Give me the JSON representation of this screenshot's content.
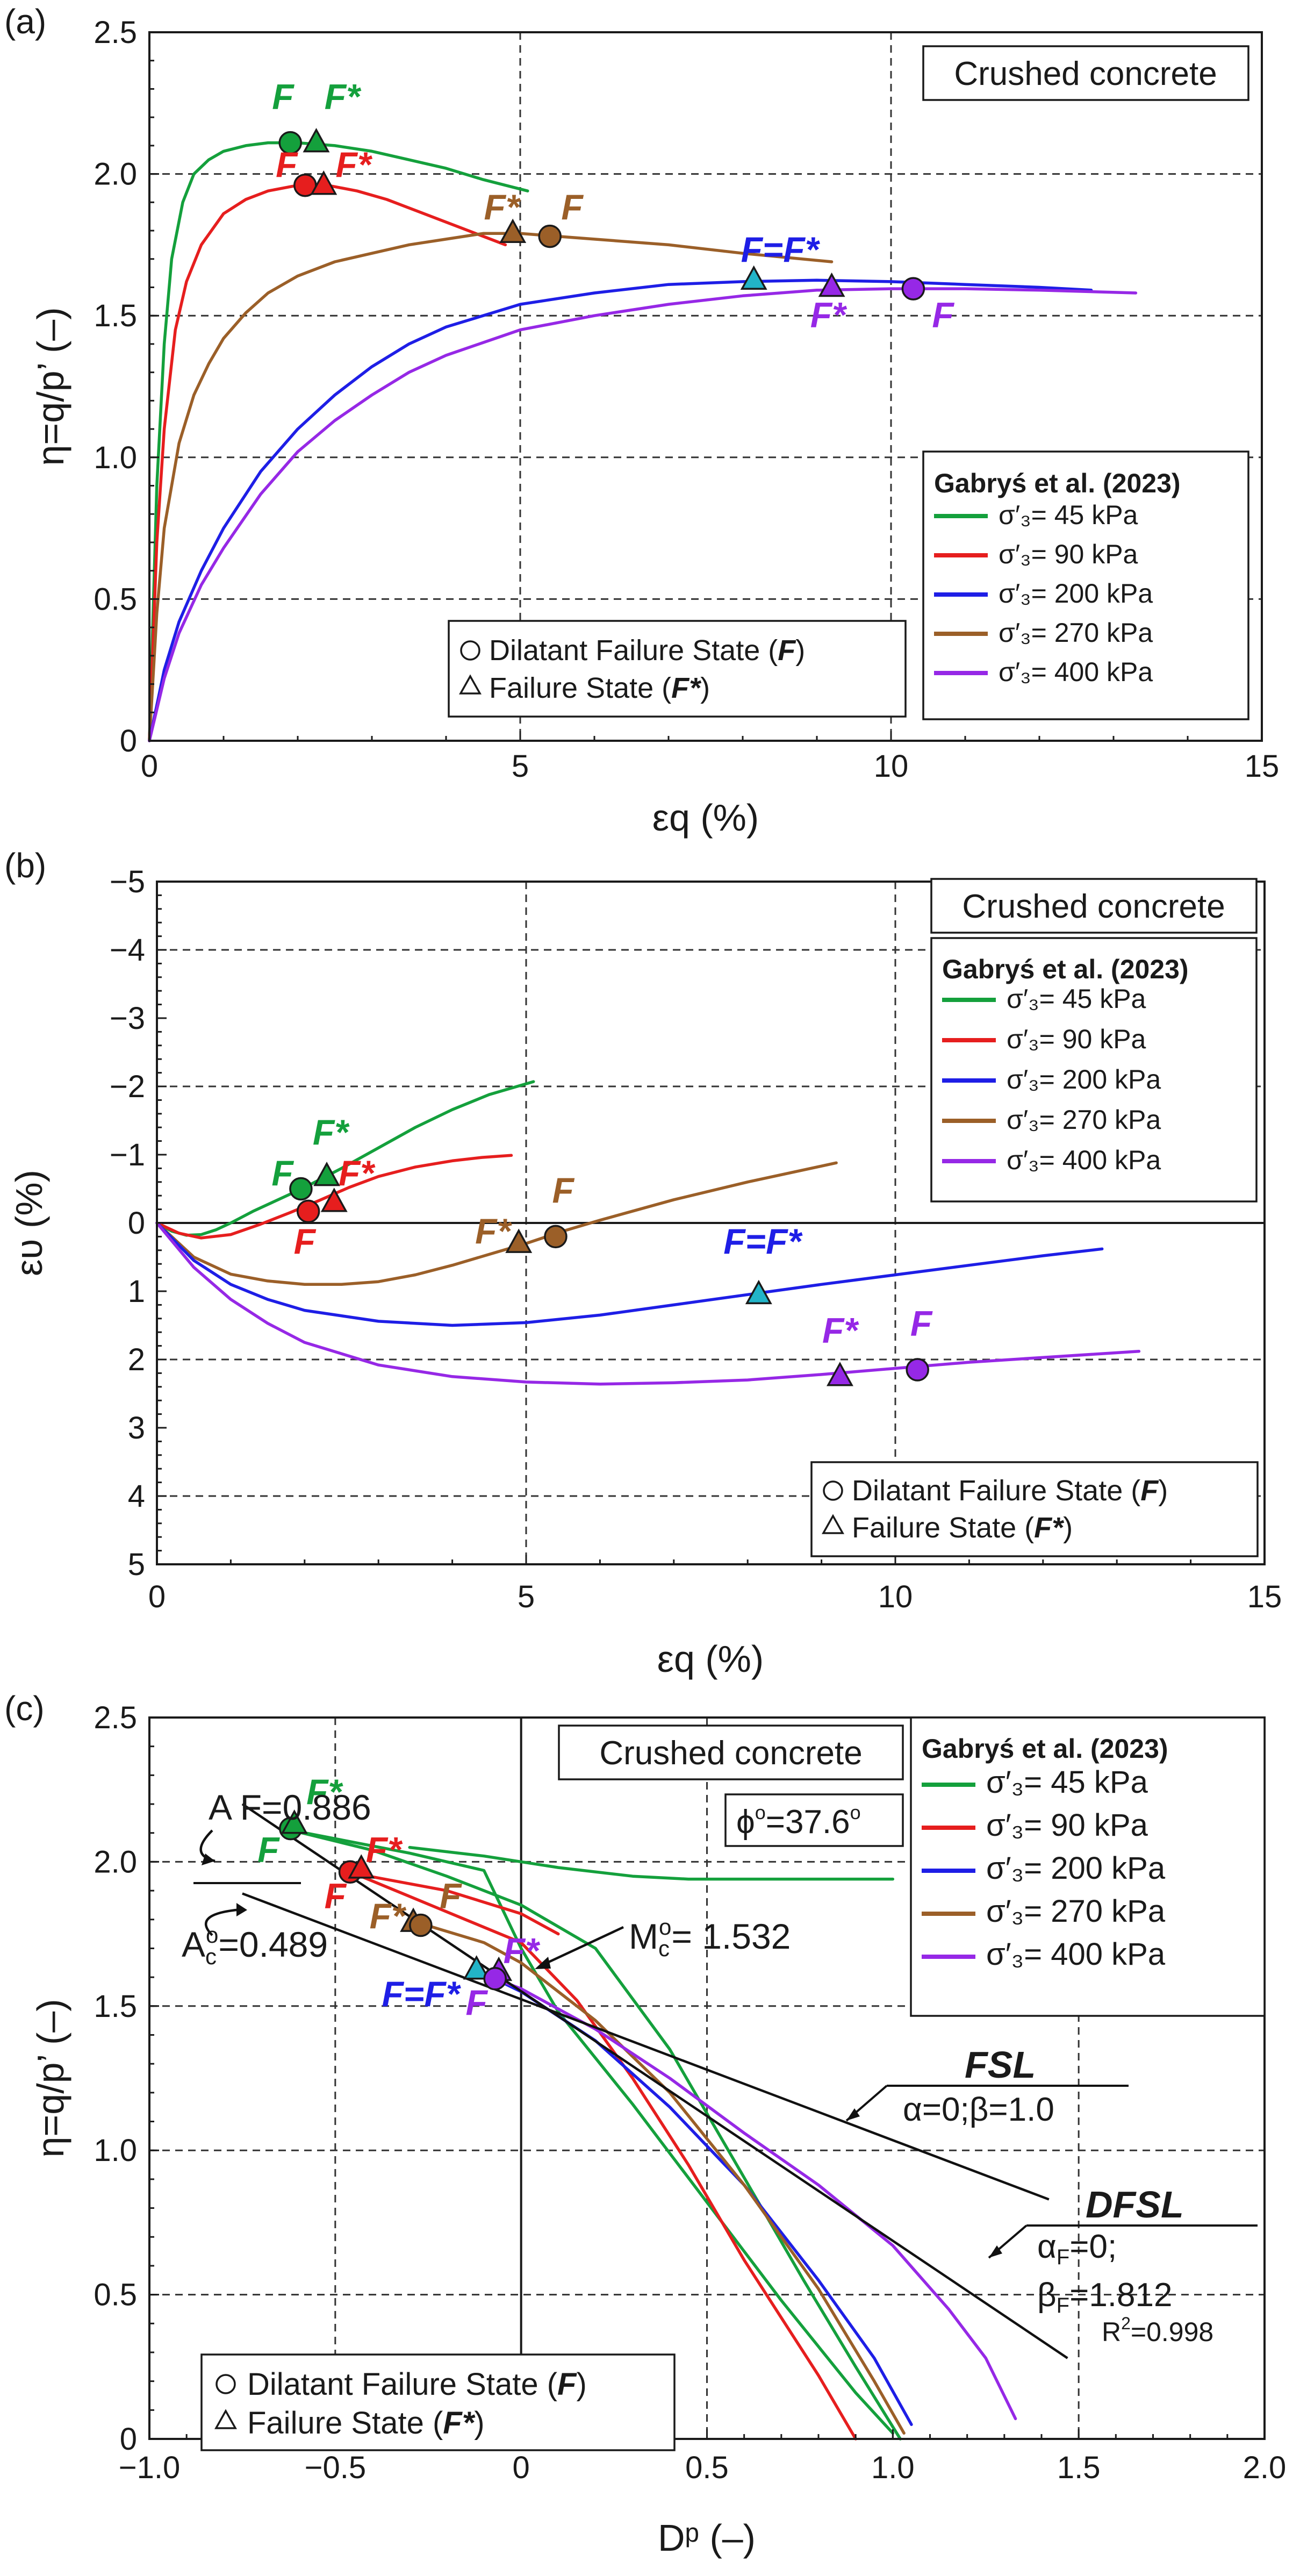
{
  "colors": {
    "s45": "#14a03c",
    "s90": "#e61e1e",
    "s200": "#1e1ee6",
    "s270": "#9b5f28",
    "s400": "#9628e6",
    "cyan": "#22b4c8"
  },
  "legend_entries": [
    {
      "key": "s45",
      "label": "= 45 kPa"
    },
    {
      "key": "s90",
      "label": "= 90 kPa"
    },
    {
      "key": "s200",
      "label": "= 200 kPa"
    },
    {
      "key": "s270",
      "label": "= 270 kPa"
    },
    {
      "key": "s400",
      "label": "= 400 kPa"
    }
  ],
  "labels": {
    "sigma": "σ′₃",
    "source": "Gabryś et al. (2023)",
    "material": "Crushed concrete",
    "dilatant": "Dilatant Failure State (",
    "failure": "Failure State (",
    "F": "F",
    "Fstar": "F*",
    "close": ")",
    "FeqF": "F=F*"
  },
  "chart_data": [
    {
      "panel_label": "(a)",
      "type": "line",
      "xlabel": "εq (%)",
      "ylabel": "η=q/p’ (–)",
      "xlim": [
        0,
        15
      ],
      "ylim": [
        0,
        2.5
      ],
      "xticks": [
        "0",
        "5",
        "10",
        "15"
      ],
      "yticks": [
        "0",
        "0.5",
        "1.0",
        "1.5",
        "2.0",
        "2.5"
      ],
      "series": [
        {
          "key": "s45",
          "x": [
            0,
            0.1,
            0.2,
            0.3,
            0.45,
            0.6,
            0.8,
            1.0,
            1.3,
            1.6,
            2.0,
            2.5,
            3.0,
            3.5,
            4.0,
            4.5,
            5.1
          ],
          "y": [
            0,
            0.9,
            1.4,
            1.7,
            1.9,
            2.0,
            2.05,
            2.08,
            2.1,
            2.11,
            2.11,
            2.1,
            2.08,
            2.05,
            2.02,
            1.98,
            1.94
          ]
        },
        {
          "key": "s90",
          "x": [
            0,
            0.1,
            0.2,
            0.35,
            0.5,
            0.7,
            1.0,
            1.3,
            1.6,
            2.0,
            2.4,
            2.8,
            3.2,
            3.6,
            4.0,
            4.4,
            4.8
          ],
          "y": [
            0,
            0.7,
            1.1,
            1.45,
            1.62,
            1.75,
            1.86,
            1.91,
            1.94,
            1.96,
            1.96,
            1.94,
            1.91,
            1.87,
            1.83,
            1.79,
            1.75
          ]
        },
        {
          "key": "s270",
          "x": [
            0,
            0.1,
            0.2,
            0.4,
            0.6,
            0.8,
            1.0,
            1.3,
            1.6,
            2.0,
            2.5,
            3.0,
            3.5,
            4.0,
            4.5,
            5.0,
            5.5,
            6.0,
            7.0,
            8.0,
            9.2
          ],
          "y": [
            0,
            0.45,
            0.75,
            1.05,
            1.22,
            1.33,
            1.42,
            1.51,
            1.58,
            1.64,
            1.69,
            1.72,
            1.75,
            1.77,
            1.79,
            1.79,
            1.78,
            1.77,
            1.75,
            1.72,
            1.69
          ]
        },
        {
          "key": "s200",
          "x": [
            0,
            0.2,
            0.4,
            0.7,
            1.0,
            1.5,
            2.0,
            2.5,
            3.0,
            3.5,
            4.0,
            5.0,
            6.0,
            7.0,
            8.0,
            9.0,
            10.0,
            11.0,
            12.0,
            12.7
          ],
          "y": [
            0,
            0.25,
            0.42,
            0.6,
            0.75,
            0.95,
            1.1,
            1.22,
            1.32,
            1.4,
            1.46,
            1.54,
            1.58,
            1.61,
            1.62,
            1.625,
            1.62,
            1.61,
            1.6,
            1.59
          ]
        },
        {
          "key": "s400",
          "x": [
            0,
            0.2,
            0.4,
            0.7,
            1.0,
            1.5,
            2.0,
            2.5,
            3.0,
            3.5,
            4.0,
            5.0,
            6.0,
            7.0,
            8.0,
            9.0,
            10.0,
            11.0,
            12.0,
            13.3
          ],
          "y": [
            0,
            0.22,
            0.38,
            0.55,
            0.68,
            0.87,
            1.02,
            1.13,
            1.22,
            1.3,
            1.36,
            1.45,
            1.5,
            1.54,
            1.57,
            1.59,
            1.595,
            1.595,
            1.59,
            1.58
          ]
        }
      ],
      "points": [
        {
          "key": "s45",
          "shape": "circle",
          "x": 1.9,
          "y": 2.11,
          "label": "F",
          "lx": 1.8,
          "ly": 2.23
        },
        {
          "key": "s45",
          "shape": "triangle",
          "x": 2.25,
          "y": 2.11,
          "label": "F*",
          "lx": 2.6,
          "ly": 2.23
        },
        {
          "key": "s90",
          "shape": "circle",
          "x": 2.1,
          "y": 1.96,
          "label": "F",
          "lx": 1.85,
          "ly": 1.99
        },
        {
          "key": "s90",
          "shape": "triangle",
          "x": 2.35,
          "y": 1.96,
          "label": "F*",
          "lx": 2.75,
          "ly": 1.99
        },
        {
          "key": "s270",
          "shape": "triangle",
          "x": 4.9,
          "y": 1.79,
          "label": "F*",
          "lx": 4.75,
          "ly": 1.84
        },
        {
          "key": "s270",
          "shape": "circle",
          "x": 5.4,
          "y": 1.78,
          "label": "F",
          "lx": 5.7,
          "ly": 1.84
        },
        {
          "key": "s200",
          "shape": "tri-cyan",
          "x": 8.15,
          "y": 1.625,
          "label": "F=F*",
          "lx": 8.5,
          "ly": 1.69
        },
        {
          "key": "s400",
          "shape": "triangle",
          "x": 9.2,
          "y": 1.6,
          "label": "F*",
          "lx": 9.15,
          "ly": 1.46
        },
        {
          "key": "s400",
          "shape": "circle",
          "x": 10.3,
          "y": 1.595,
          "label": "F",
          "lx": 10.7,
          "ly": 1.46
        }
      ]
    },
    {
      "panel_label": "(b)",
      "type": "line",
      "xlabel": "εq (%)",
      "ylabel": "ευ (%)",
      "xlim": [
        0,
        15
      ],
      "ylim": [
        -5,
        5
      ],
      "xticks": [
        "0",
        "5",
        "10",
        "15"
      ],
      "yticks": [
        "−5",
        "−4",
        "−3",
        "−2",
        "−1",
        "0",
        "1",
        "2",
        "3",
        "4",
        "5"
      ],
      "series": [
        {
          "key": "s45",
          "x": [
            0,
            0.2,
            0.4,
            0.6,
            0.8,
            1.0,
            1.3,
            1.6,
            2.0,
            2.5,
            3.0,
            3.5,
            4.0,
            4.5,
            5.1
          ],
          "y": [
            0,
            0.12,
            0.18,
            0.17,
            0.1,
            0.0,
            -0.17,
            -0.32,
            -0.52,
            -0.8,
            -1.1,
            -1.4,
            -1.66,
            -1.88,
            -2.07
          ]
        },
        {
          "key": "s90",
          "x": [
            0,
            0.3,
            0.6,
            1.0,
            1.4,
            1.8,
            2.2,
            2.6,
            3.0,
            3.5,
            4.0,
            4.4,
            4.8
          ],
          "y": [
            0,
            0.15,
            0.22,
            0.17,
            0.02,
            -0.15,
            -0.33,
            -0.52,
            -0.68,
            -0.82,
            -0.91,
            -0.96,
            -0.99
          ]
        },
        {
          "key": "s270",
          "x": [
            0,
            0.5,
            1.0,
            1.5,
            2.0,
            2.5,
            3.0,
            3.5,
            4.0,
            4.5,
            5.0,
            5.5,
            6.0,
            7.0,
            8.0,
            9.2
          ],
          "y": [
            0,
            0.5,
            0.75,
            0.85,
            0.9,
            0.9,
            0.86,
            0.76,
            0.62,
            0.46,
            0.3,
            0.12,
            -0.04,
            -0.34,
            -0.6,
            -0.88
          ]
        },
        {
          "key": "s200",
          "x": [
            0,
            0.5,
            1.0,
            1.5,
            2.0,
            3.0,
            4.0,
            5.0,
            6.0,
            7.0,
            8.0,
            9.0,
            10.0,
            11.0,
            12.0,
            12.8
          ],
          "y": [
            0,
            0.55,
            0.9,
            1.12,
            1.28,
            1.44,
            1.5,
            1.46,
            1.35,
            1.2,
            1.05,
            0.9,
            0.76,
            0.62,
            0.48,
            0.38
          ]
        },
        {
          "key": "s400",
          "x": [
            0,
            0.5,
            1.0,
            1.5,
            2.0,
            3.0,
            4.0,
            5.0,
            6.0,
            7.0,
            8.0,
            9.0,
            10.0,
            11.0,
            12.0,
            13.3
          ],
          "y": [
            0,
            0.65,
            1.12,
            1.47,
            1.75,
            2.08,
            2.25,
            2.33,
            2.36,
            2.34,
            2.3,
            2.22,
            2.13,
            2.04,
            1.97,
            1.88
          ]
        }
      ],
      "points": [
        {
          "key": "s45",
          "shape": "circle",
          "x": 1.95,
          "y": -0.5,
          "label": "F",
          "lx": 1.7,
          "ly": -0.55
        },
        {
          "key": "s45",
          "shape": "triangle",
          "x": 2.3,
          "y": -0.68,
          "label": "F*",
          "lx": 2.35,
          "ly": -1.15
        },
        {
          "key": "s90",
          "shape": "circle",
          "x": 2.05,
          "y": -0.17,
          "label": "F",
          "lx": 2.0,
          "ly": 0.45
        },
        {
          "key": "s90",
          "shape": "triangle",
          "x": 2.4,
          "y": -0.3,
          "label": "F*",
          "lx": 2.7,
          "ly": -0.55
        },
        {
          "key": "s270",
          "shape": "triangle",
          "x": 4.9,
          "y": 0.3,
          "label": "F*",
          "lx": 4.55,
          "ly": 0.3
        },
        {
          "key": "s270",
          "shape": "circle",
          "x": 5.4,
          "y": 0.2,
          "label": "F",
          "lx": 5.5,
          "ly": -0.3
        },
        {
          "key": "s200",
          "shape": "tri-cyan",
          "x": 8.15,
          "y": 1.05,
          "label": "F=F*",
          "lx": 8.2,
          "ly": 0.45
        },
        {
          "key": "s400",
          "shape": "triangle",
          "x": 9.25,
          "y": 2.25,
          "label": "F*",
          "lx": 9.25,
          "ly": 1.75
        },
        {
          "key": "s400",
          "shape": "circle",
          "x": 10.3,
          "y": 2.15,
          "label": "F",
          "lx": 10.35,
          "ly": 1.65
        }
      ]
    },
    {
      "panel_label": "(c)",
      "type": "line",
      "xlabel": "Dᵖ (–)",
      "ylabel": "η=q/p’ (–)",
      "xlim": [
        -1.0,
        2.0
      ],
      "ylim": [
        0,
        2.5
      ],
      "xticks": [
        "−1.0",
        "−0.5",
        "0",
        "0.5",
        "1.0",
        "1.5",
        "2.0"
      ],
      "yticks": [
        "0",
        "0.5",
        "1.0",
        "1.5",
        "2.0",
        "2.5"
      ],
      "series": [
        {
          "key": "s45",
          "x": [
            -0.62,
            -0.5,
            -0.3,
            -0.1,
            0.0,
            0.1,
            0.2,
            0.3,
            0.4,
            0.5,
            0.6,
            0.7,
            0.8,
            0.9,
            1.0
          ],
          "y": [
            2.11,
            2.08,
            2.03,
            1.97,
            1.7,
            1.48,
            1.32,
            1.16,
            0.99,
            0.82,
            0.65,
            0.48,
            0.32,
            0.16,
            0.02
          ]
        },
        {
          "key": "s45",
          "x": [
            -0.62,
            -0.4,
            -0.2,
            0.0,
            0.2,
            0.4,
            0.58,
            0.76,
            0.9,
            1.02
          ],
          "y": [
            2.11,
            2.04,
            1.95,
            1.85,
            1.7,
            1.35,
            0.95,
            0.55,
            0.25,
            0.0
          ]
        },
        {
          "key": "s45",
          "x": [
            -0.3,
            -0.1,
            0.1,
            0.3,
            0.45,
            0.6,
            0.75,
            0.88,
            1.0
          ],
          "y": [
            2.05,
            2.02,
            1.98,
            1.95,
            1.94,
            1.94,
            1.94,
            1.94,
            1.94
          ]
        },
        {
          "key": "s90",
          "x": [
            -0.45,
            -0.3,
            -0.15,
            0.0,
            0.15,
            0.3,
            0.45,
            0.6,
            0.7,
            0.8,
            0.9
          ],
          "y": [
            1.96,
            1.88,
            1.8,
            1.72,
            1.52,
            1.25,
            0.95,
            0.62,
            0.42,
            0.22,
            0.0
          ]
        },
        {
          "key": "s90",
          "x": [
            -0.45,
            -0.2,
            0.0,
            0.1
          ],
          "y": [
            1.96,
            1.9,
            1.82,
            1.75
          ]
        },
        {
          "key": "s200",
          "x": [
            -0.12,
            0.0,
            0.2,
            0.4,
            0.6,
            0.8,
            0.95,
            1.05
          ],
          "y": [
            1.625,
            1.55,
            1.38,
            1.15,
            0.88,
            0.55,
            0.28,
            0.05
          ]
        },
        {
          "key": "s270",
          "x": [
            -0.28,
            -0.1,
            0.0,
            0.2,
            0.4,
            0.6,
            0.8,
            0.95,
            1.03
          ],
          "y": [
            1.79,
            1.72,
            1.65,
            1.45,
            1.2,
            0.88,
            0.52,
            0.2,
            0.02
          ]
        },
        {
          "key": "s400",
          "x": [
            -0.08,
            0.0,
            0.2,
            0.4,
            0.6,
            0.8,
            1.0,
            1.15,
            1.25,
            1.33
          ],
          "y": [
            1.6,
            1.56,
            1.42,
            1.25,
            1.06,
            0.88,
            0.67,
            0.45,
            0.28,
            0.07
          ]
        }
      ],
      "points": [
        {
          "key": "s45",
          "shape": "circle",
          "x": -0.62,
          "y": 2.115,
          "label": "F",
          "lx": -0.68,
          "ly": 2.0
        },
        {
          "key": "s45",
          "shape": "triangle",
          "x": -0.61,
          "y": 2.13,
          "label": "F*",
          "lx": -0.53,
          "ly": 2.2
        },
        {
          "key": "s90",
          "shape": "circle",
          "x": -0.46,
          "y": 1.965,
          "label": "F",
          "lx": -0.5,
          "ly": 1.84
        },
        {
          "key": "s90",
          "shape": "triangle",
          "x": -0.43,
          "y": 1.975,
          "label": "F*",
          "lx": -0.37,
          "ly": 2.0
        },
        {
          "key": "s270",
          "shape": "triangle",
          "x": -0.29,
          "y": 1.79,
          "label": "F*",
          "lx": -0.36,
          "ly": 1.77
        },
        {
          "key": "s270",
          "shape": "circle",
          "x": -0.27,
          "y": 1.78,
          "label": "F",
          "lx": -0.19,
          "ly": 1.84
        },
        {
          "key": "s200",
          "shape": "tri-cyan",
          "x": -0.12,
          "y": 1.625,
          "label": "F=F*",
          "lx": -0.27,
          "ly": 1.5
        },
        {
          "key": "s400",
          "shape": "triangle",
          "x": -0.06,
          "y": 1.62,
          "label": "F*",
          "lx": 0.0,
          "ly": 1.65
        },
        {
          "key": "s400",
          "shape": "circle",
          "x": -0.07,
          "y": 1.595,
          "label": "F",
          "lx": -0.12,
          "ly": 1.47
        }
      ],
      "reference_lines": [
        {
          "name": "DFSL",
          "x": [
            -0.75,
            1.47
          ],
          "y": [
            2.2,
            0.28
          ]
        },
        {
          "name": "FSL",
          "x": [
            -0.75,
            1.42
          ],
          "y": [
            1.89,
            0.83
          ]
        }
      ],
      "annotations": {
        "AF": "A F=0.886",
        "Ac": "A",
        "Ac_sub": "c",
        "Ac_sup": "o",
        "Ac_val": "=0.489",
        "phi": "ϕ",
        "phi_sup": "o",
        "phi_val": "=37.6",
        "phi_unit": "o",
        "Mc": "M",
        "Mc_sub": "c",
        "Mc_sup": "o",
        "Mc_val": "= 1.532",
        "FSL": "FSL",
        "FSL_params": "α=0;β=1.0",
        "DFSL": "DFSL",
        "DFSL_a": "α",
        "DFSL_a_sub": "F",
        "DFSL_a_val": "=0;",
        "DFSL_b": "β",
        "DFSL_b_sub": "F",
        "DFSL_b_val": "=1.812",
        "R2": "R",
        "R2_sup": "2",
        "R2_val": "=0.998"
      }
    }
  ]
}
